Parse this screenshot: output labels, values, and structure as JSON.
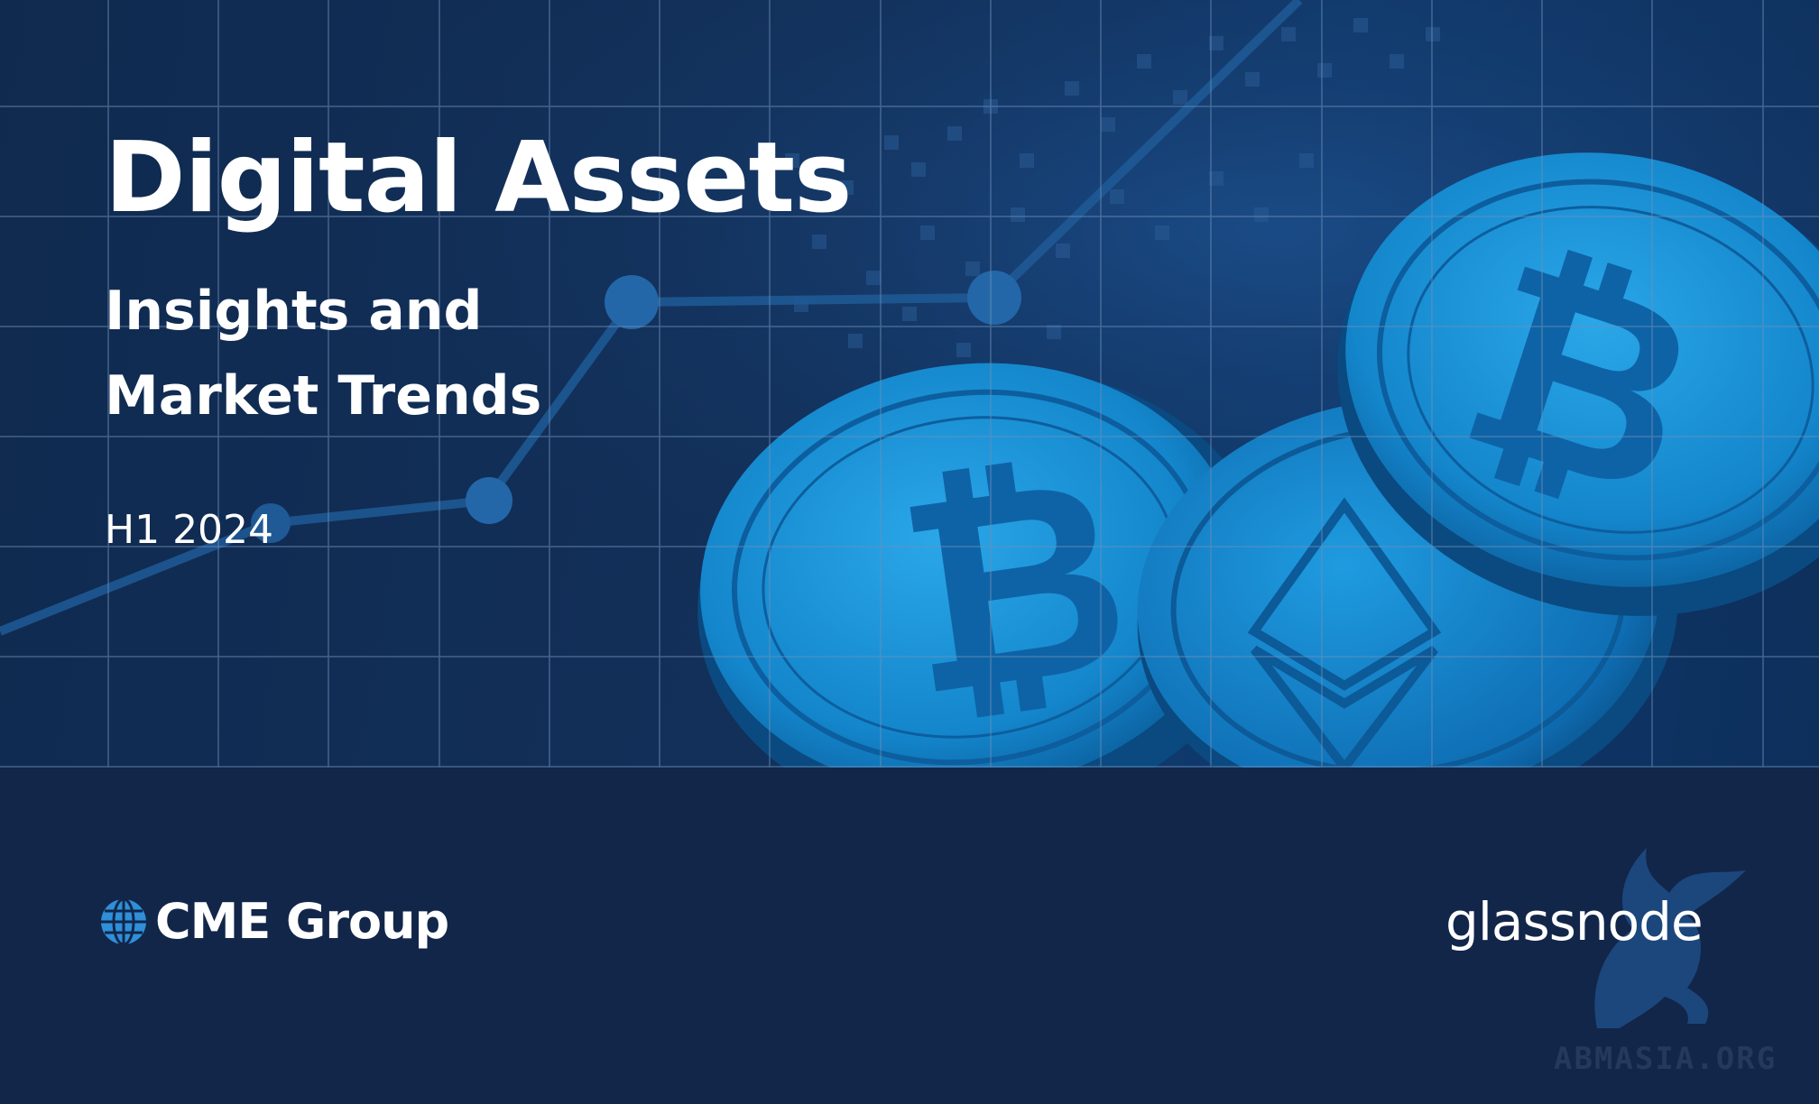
{
  "cover": {
    "title": "Digital Assets",
    "subtitle_line1": "Insights and",
    "subtitle_line2": "Market Trends",
    "period": "H1 2024"
  },
  "logos": {
    "cme_group": "CME Group",
    "glassnode": "glassnode"
  },
  "watermark": {
    "text": "ABMASIA.ORG"
  },
  "colors": {
    "background": "#12264a",
    "coin_blue": "#1a8fd6",
    "text": "#ffffff",
    "grid": "#5f7fa8"
  }
}
